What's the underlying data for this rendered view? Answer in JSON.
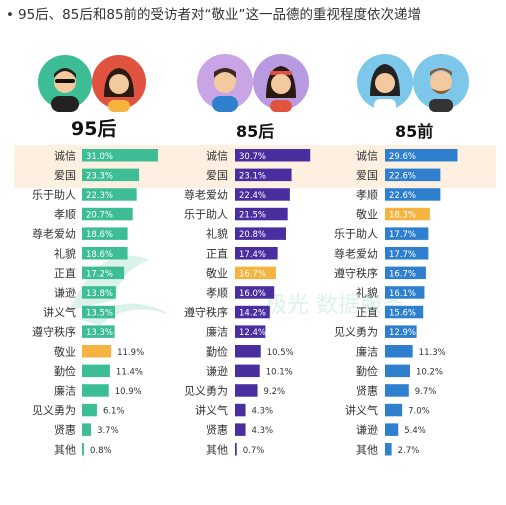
{
  "title": "95后、85后和85前的受访者对“敬业”这一品德的重视程度依次递增",
  "colors": {
    "teal": "#3dbd96",
    "purple": "#4a2ea0",
    "blue": "#2f7fcf",
    "orange": "#f5b33f",
    "highlight": "#fdf0e0"
  },
  "watermark_text": "极光 数据服务",
  "chart_data": [
    {
      "type": "bar",
      "title": "95后",
      "color": "#3dbd96",
      "highlight_label": "敬业",
      "categories": [
        "诚信",
        "爱国",
        "乐于助人",
        "孝顺",
        "尊老爱幼",
        "礼貌",
        "正直",
        "谦逊",
        "讲义气",
        "遵守秩序",
        "敬业",
        "勤俭",
        "廉洁",
        "见义勇为",
        "贤惠",
        "其他"
      ],
      "values": [
        31.0,
        23.3,
        22.3,
        20.7,
        18.6,
        18.6,
        17.2,
        13.8,
        13.5,
        13.3,
        11.9,
        11.4,
        10.9,
        6.1,
        3.7,
        0.8
      ],
      "value_labels": [
        "31.0%",
        "23.3%",
        "22.3%",
        "20.7%",
        "18.6%",
        "18.6%",
        "17.2%",
        "13.8%",
        "13.5%",
        "13.3%",
        "11.9%",
        "11.4%",
        "10.9%",
        "6.1%",
        "3.7%",
        "0.8%"
      ]
    },
    {
      "type": "bar",
      "title": "85后",
      "color": "#4a2ea0",
      "highlight_label": "敬业",
      "categories": [
        "诚信",
        "爱国",
        "尊老爱幼",
        "乐于助人",
        "礼貌",
        "正直",
        "敬业",
        "孝顺",
        "遵守秩序",
        "廉洁",
        "勤俭",
        "谦逊",
        "见义勇为",
        "讲义气",
        "贤惠",
        "其他"
      ],
      "values": [
        30.7,
        23.1,
        22.4,
        21.5,
        20.8,
        17.4,
        16.7,
        16.0,
        14.2,
        12.4,
        10.5,
        10.1,
        9.2,
        4.3,
        4.3,
        0.7
      ],
      "value_labels": [
        "30.7%",
        "23.1%",
        "22.4%",
        "21.5%",
        "20.8%",
        "17.4%",
        "16.7%",
        "16.0%",
        "14.2%",
        "12.4%",
        "10.5%",
        "10.1%",
        "9.2%",
        "4.3%",
        "4.3%",
        "0.7%"
      ]
    },
    {
      "type": "bar",
      "title": "85前",
      "color": "#2f7fcf",
      "highlight_label": "敬业",
      "categories": [
        "诚信",
        "爱国",
        "孝顺",
        "敬业",
        "乐于助人",
        "尊老爱幼",
        "遵守秩序",
        "礼貌",
        "正直",
        "见义勇为",
        "廉洁",
        "勤俭",
        "贤惠",
        "讲义气",
        "谦逊",
        "其他"
      ],
      "values": [
        29.6,
        22.6,
        22.6,
        18.3,
        17.7,
        17.7,
        16.7,
        16.1,
        15.6,
        12.9,
        11.3,
        10.2,
        9.7,
        7.0,
        5.4,
        2.7
      ],
      "value_labels": [
        "29.6%",
        "22.6%",
        "22.6%",
        "18.3%",
        "17.7%",
        "17.7%",
        "16.7%",
        "16.1%",
        "15.6%",
        "12.9%",
        "11.3%",
        "10.2%",
        "9.7%",
        "7.0%",
        "5.4%",
        "2.7%"
      ]
    }
  ]
}
